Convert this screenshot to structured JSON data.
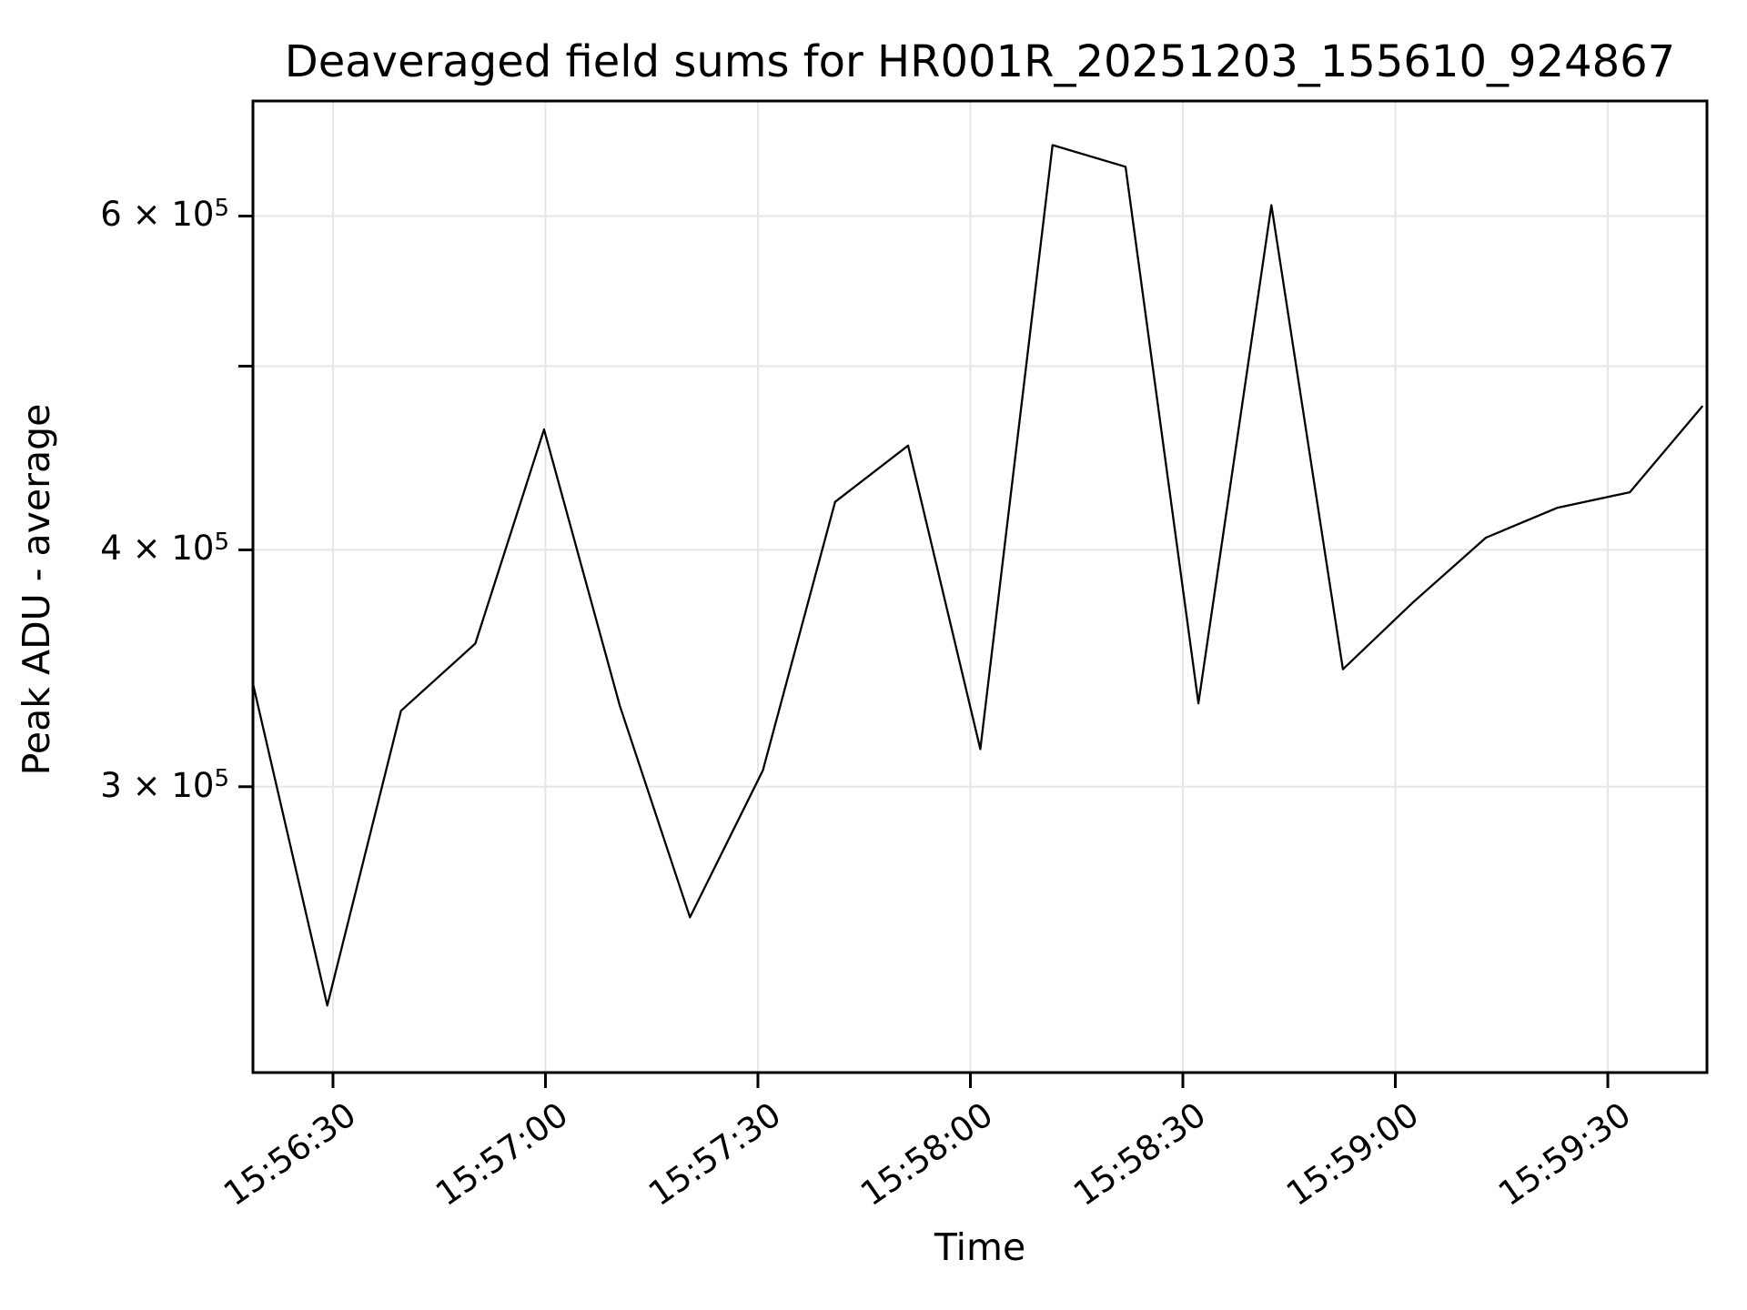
{
  "chart": {
    "title": "Deaveraged field sums for HR001R_20251203_155610_924867",
    "xlabel": "Time",
    "ylabel": "Peak ADU - average"
  },
  "chart_data": {
    "type": "line",
    "title": "Deaveraged field sums for HR001R_20251203_155610_924867",
    "xlabel": "Time",
    "ylabel": "Peak ADU - average",
    "y_scale": "log",
    "ylim": [
      212000,
      690000
    ],
    "x_seconds_range": [
      0,
      205.3
    ],
    "grid": true,
    "legend": "none",
    "line_color": "#000000",
    "grid_color": "#e6e6e6",
    "spine_color": "#000000",
    "background_color": "#ffffff",
    "x_ticks": [
      {
        "t": 11.3,
        "label": "15:56:30"
      },
      {
        "t": 41.3,
        "label": "15:57:00"
      },
      {
        "t": 71.3,
        "label": "15:57:30"
      },
      {
        "t": 101.3,
        "label": "15:58:00"
      },
      {
        "t": 131.3,
        "label": "15:58:30"
      },
      {
        "t": 161.3,
        "label": "15:59:00"
      },
      {
        "t": 191.3,
        "label": "15:59:30"
      }
    ],
    "y_ticks": [
      {
        "value": 600000,
        "prefix": "6 × 10",
        "sup": "5"
      },
      {
        "value": 500000
      },
      {
        "value": 400000,
        "prefix": "4 × 10",
        "sup": "5"
      },
      {
        "value": 300000,
        "prefix": "3 × 10",
        "sup": "5"
      }
    ],
    "points": [
      {
        "time": "15:56:19",
        "t": 0,
        "value": 340000
      },
      {
        "time": "15:56:29",
        "t": 10.5,
        "value": 230000
      },
      {
        "time": "15:56:40",
        "t": 20.9,
        "value": 329000
      },
      {
        "time": "15:56:50",
        "t": 31.4,
        "value": 357000
      },
      {
        "time": "15:57:00",
        "t": 41.1,
        "value": 463000
      },
      {
        "time": "15:57:10",
        "t": 51.8,
        "value": 331000
      },
      {
        "time": "15:57:20",
        "t": 61.7,
        "value": 256000
      },
      {
        "time": "15:57:31",
        "t": 72.0,
        "value": 306000
      },
      {
        "time": "15:57:41",
        "t": 82.2,
        "value": 424000
      },
      {
        "time": "15:57:51",
        "t": 92.5,
        "value": 454000
      },
      {
        "time": "15:58:01",
        "t": 102.7,
        "value": 314000
      },
      {
        "time": "15:58:12",
        "t": 112.9,
        "value": 654000
      },
      {
        "time": "15:58:22",
        "t": 123.2,
        "value": 637000
      },
      {
        "time": "15:58:32",
        "t": 133.5,
        "value": 332000
      },
      {
        "time": "15:58:42",
        "t": 143.8,
        "value": 608000
      },
      {
        "time": "15:58:52",
        "t": 153.9,
        "value": 346000
      },
      {
        "time": "15:59:02",
        "t": 163.7,
        "value": 375000
      },
      {
        "time": "15:59:13",
        "t": 174.1,
        "value": 406000
      },
      {
        "time": "15:59:23",
        "t": 184.2,
        "value": 421000
      },
      {
        "time": "15:59:33",
        "t": 194.4,
        "value": 429000
      },
      {
        "time": "15:59:43",
        "t": 204.6,
        "value": 476000
      }
    ]
  }
}
